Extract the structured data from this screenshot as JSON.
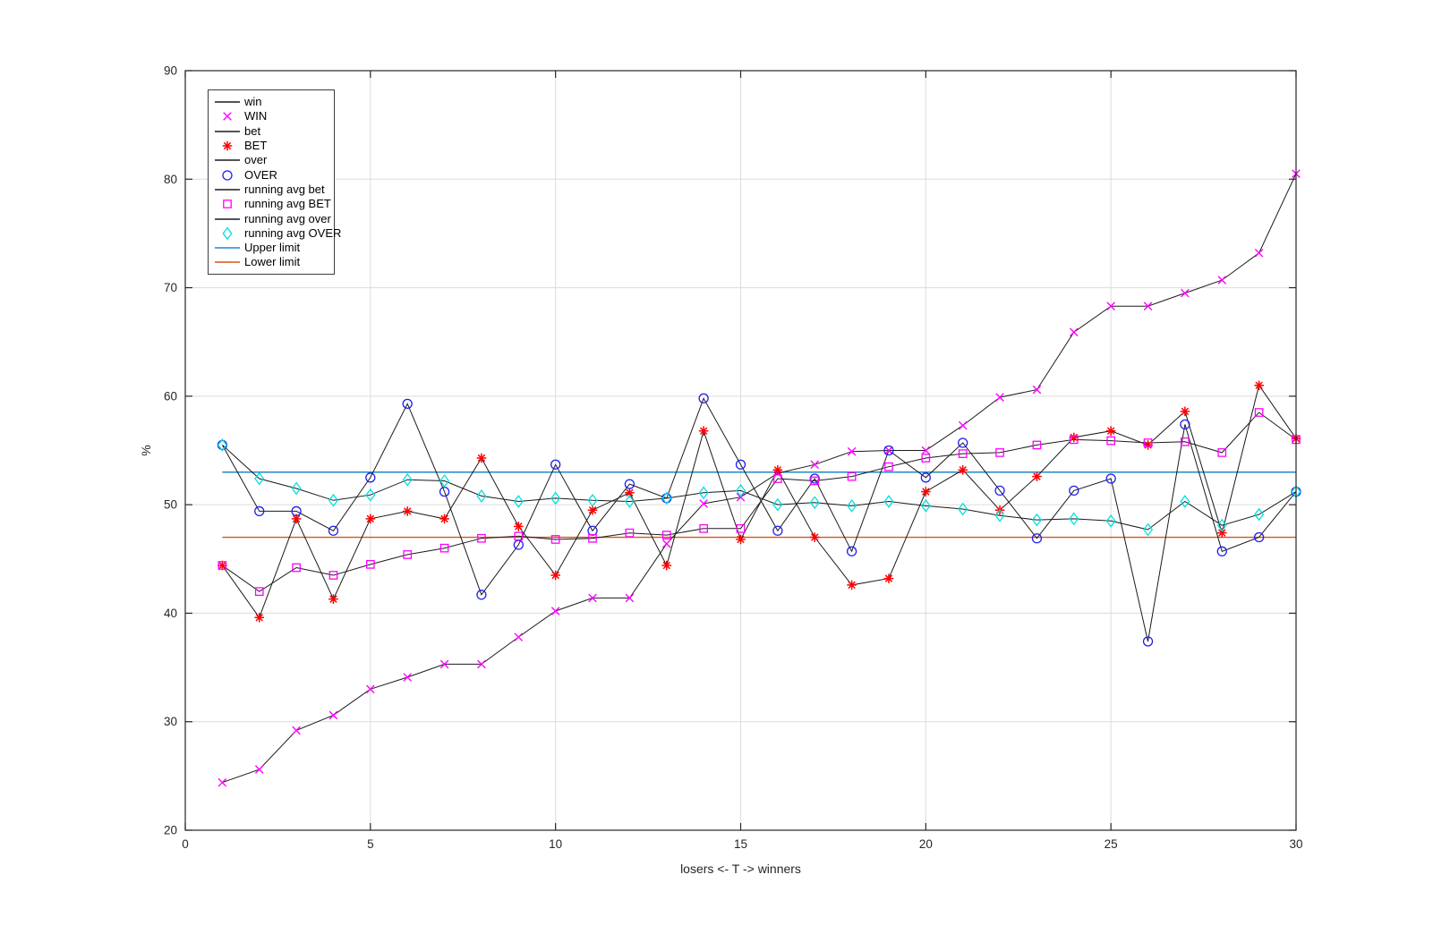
{
  "figure": {
    "background": "#ffffff"
  },
  "chart_data": {
    "type": "line",
    "title": "",
    "xlabel": "losers <- T -> winners",
    "ylabel": "%",
    "xlim": [
      0,
      30
    ],
    "ylim": [
      20,
      90
    ],
    "xticks": [
      0,
      5,
      10,
      15,
      20,
      25,
      30
    ],
    "yticks": [
      20,
      30,
      40,
      50,
      60,
      70,
      80,
      90
    ],
    "grid": true,
    "legend_position": "top-left",
    "axis_color": "#262626",
    "grid_color": "#dcdcdc",
    "x": [
      1,
      2,
      3,
      4,
      5,
      6,
      7,
      8,
      9,
      10,
      11,
      12,
      13,
      14,
      15,
      16,
      17,
      18,
      19,
      20,
      21,
      22,
      23,
      24,
      25,
      26,
      27,
      28,
      29,
      30
    ],
    "series": [
      {
        "name": "win",
        "type": "line",
        "color": "#1a1a1a",
        "values": [
          24.4,
          25.6,
          29.2,
          30.6,
          33.0,
          34.1,
          35.3,
          35.3,
          37.8,
          40.2,
          41.4,
          41.4,
          46.4,
          50.1,
          50.7,
          52.9,
          53.7,
          54.9,
          55.0,
          55.0,
          57.3,
          59.9,
          60.6,
          65.9,
          68.3,
          68.3,
          69.5,
          70.7,
          73.2,
          80.5
        ]
      },
      {
        "name": "WIN",
        "type": "markers",
        "marker": "x",
        "color": "#ff00ff",
        "values": [
          24.4,
          25.6,
          29.2,
          30.6,
          33.0,
          34.1,
          35.3,
          35.3,
          37.8,
          40.2,
          41.4,
          41.4,
          46.4,
          50.1,
          50.7,
          52.9,
          53.7,
          54.9,
          55.0,
          55.0,
          57.3,
          59.9,
          60.6,
          65.9,
          68.3,
          68.3,
          69.5,
          70.7,
          73.2,
          80.5
        ]
      },
      {
        "name": "bet",
        "type": "line",
        "color": "#1a1a1a",
        "values": [
          44.4,
          39.6,
          48.7,
          41.3,
          48.7,
          49.4,
          48.7,
          54.3,
          48.0,
          43.5,
          49.5,
          51.1,
          44.4,
          56.8,
          46.8,
          53.2,
          47.0,
          42.6,
          43.2,
          51.2,
          53.2,
          49.5,
          52.6,
          56.2,
          56.8,
          55.5,
          58.6,
          47.4,
          61.0,
          56.1
        ]
      },
      {
        "name": "BET",
        "type": "markers",
        "marker": "asterisk",
        "color": "#ff0000",
        "values": [
          44.4,
          39.6,
          48.7,
          41.3,
          48.7,
          49.4,
          48.7,
          54.3,
          48.0,
          43.5,
          49.5,
          51.1,
          44.4,
          56.8,
          46.8,
          53.2,
          47.0,
          42.6,
          43.2,
          51.2,
          53.2,
          49.5,
          52.6,
          56.2,
          56.8,
          55.5,
          58.6,
          47.4,
          61.0,
          56.1
        ]
      },
      {
        "name": "over",
        "type": "line",
        "color": "#1a1a1a",
        "values": [
          55.5,
          49.4,
          49.4,
          47.6,
          52.5,
          59.3,
          51.2,
          41.7,
          46.3,
          53.7,
          47.6,
          51.9,
          50.6,
          59.8,
          53.7,
          47.6,
          52.4,
          45.7,
          55.0,
          52.5,
          55.7,
          51.3,
          46.9,
          51.3,
          52.4,
          37.4,
          57.4,
          45.7,
          47.0,
          51.2
        ]
      },
      {
        "name": "OVER",
        "type": "markers",
        "marker": "circle",
        "color": "#2020ee",
        "values": [
          55.5,
          49.4,
          49.4,
          47.6,
          52.5,
          59.3,
          51.2,
          41.7,
          46.3,
          53.7,
          47.6,
          51.9,
          50.6,
          59.8,
          53.7,
          47.6,
          52.4,
          45.7,
          55.0,
          52.5,
          55.7,
          51.3,
          46.9,
          51.3,
          52.4,
          37.4,
          57.4,
          45.7,
          47.0,
          51.2
        ]
      },
      {
        "name": "running avg bet",
        "type": "line",
        "color": "#1a1a1a",
        "values": [
          44.4,
          42.0,
          44.2,
          43.5,
          44.5,
          45.4,
          46.0,
          46.9,
          47.1,
          46.8,
          46.9,
          47.4,
          47.2,
          47.8,
          47.8,
          52.4,
          52.2,
          52.6,
          53.5,
          54.3,
          54.7,
          54.8,
          55.5,
          56.0,
          55.9,
          55.7,
          55.8,
          54.8,
          58.5,
          56.0
        ]
      },
      {
        "name": "running avg BET",
        "type": "markers",
        "marker": "square",
        "color": "#ff00ff",
        "values": [
          44.4,
          42.0,
          44.2,
          43.5,
          44.5,
          45.4,
          46.0,
          46.9,
          47.1,
          46.8,
          46.9,
          47.4,
          47.2,
          47.8,
          47.8,
          52.4,
          52.2,
          52.6,
          53.5,
          54.3,
          54.7,
          54.8,
          55.5,
          56.0,
          55.9,
          55.7,
          55.8,
          54.8,
          58.5,
          56.0
        ]
      },
      {
        "name": "running avg over",
        "type": "line",
        "color": "#1a1a1a",
        "values": [
          55.5,
          52.4,
          51.5,
          50.4,
          50.9,
          52.3,
          52.2,
          50.8,
          50.3,
          50.6,
          50.4,
          50.3,
          50.6,
          51.1,
          51.3,
          50.0,
          50.2,
          49.9,
          50.3,
          49.9,
          49.6,
          49.0,
          48.6,
          48.7,
          48.5,
          47.7,
          50.3,
          48.1,
          49.1,
          51.2
        ]
      },
      {
        "name": "running avg OVER",
        "type": "markers",
        "marker": "diamond",
        "color": "#00e0e0",
        "values": [
          55.5,
          52.4,
          51.5,
          50.4,
          50.9,
          52.3,
          52.2,
          50.8,
          50.3,
          50.6,
          50.4,
          50.3,
          50.6,
          51.1,
          51.3,
          50.0,
          50.2,
          49.9,
          50.3,
          49.9,
          49.6,
          49.0,
          48.6,
          48.7,
          48.5,
          47.7,
          50.3,
          48.1,
          49.1,
          51.2
        ]
      },
      {
        "name": "Upper limit",
        "type": "hline",
        "color": "#1e88c9",
        "value": 53,
        "span": [
          1,
          30
        ]
      },
      {
        "name": "Lower limit",
        "type": "hline",
        "color": "#d95319",
        "value": 47,
        "span": [
          1,
          30
        ]
      }
    ]
  }
}
